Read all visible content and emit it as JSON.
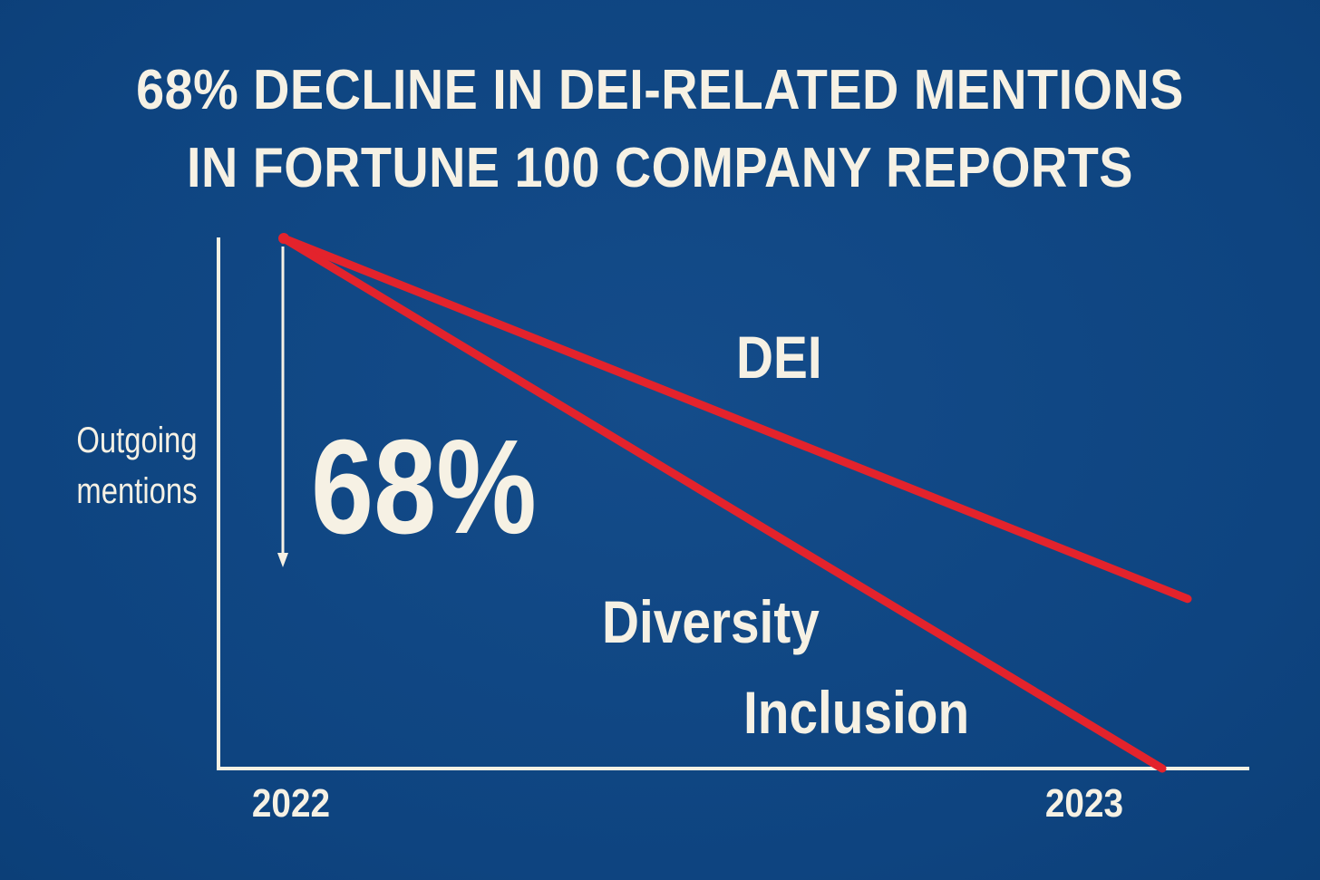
{
  "chart_data": {
    "type": "line",
    "title_lines": [
      "68% DECLINE IN DEI-RELATED MENTIONS",
      "IN FORTUNE 100 COMPANY REPORTS"
    ],
    "xlabel": "",
    "ylabel_lines": [
      "Outgoing",
      "mentions"
    ],
    "categories": [
      "2022",
      "2023"
    ],
    "ylim": [
      0,
      100
    ],
    "grid": false,
    "series": [
      {
        "name": "DEI",
        "values": [
          100,
          32
        ]
      },
      {
        "name": "Diversity",
        "values": [
          100,
          0
        ]
      },
      {
        "name": "Inclusion",
        "values": [
          100,
          0
        ]
      }
    ],
    "series_labels": {
      "dei": "DEI",
      "diversity": "Diversity",
      "inclusion": "Inclusion"
    },
    "annotation": {
      "text": "68%",
      "from": 100,
      "to": 32
    },
    "colors": {
      "background": "#0f4783",
      "line": "#e3232c",
      "text": "#f6f1e4",
      "axis": "#f6f1e4"
    }
  }
}
